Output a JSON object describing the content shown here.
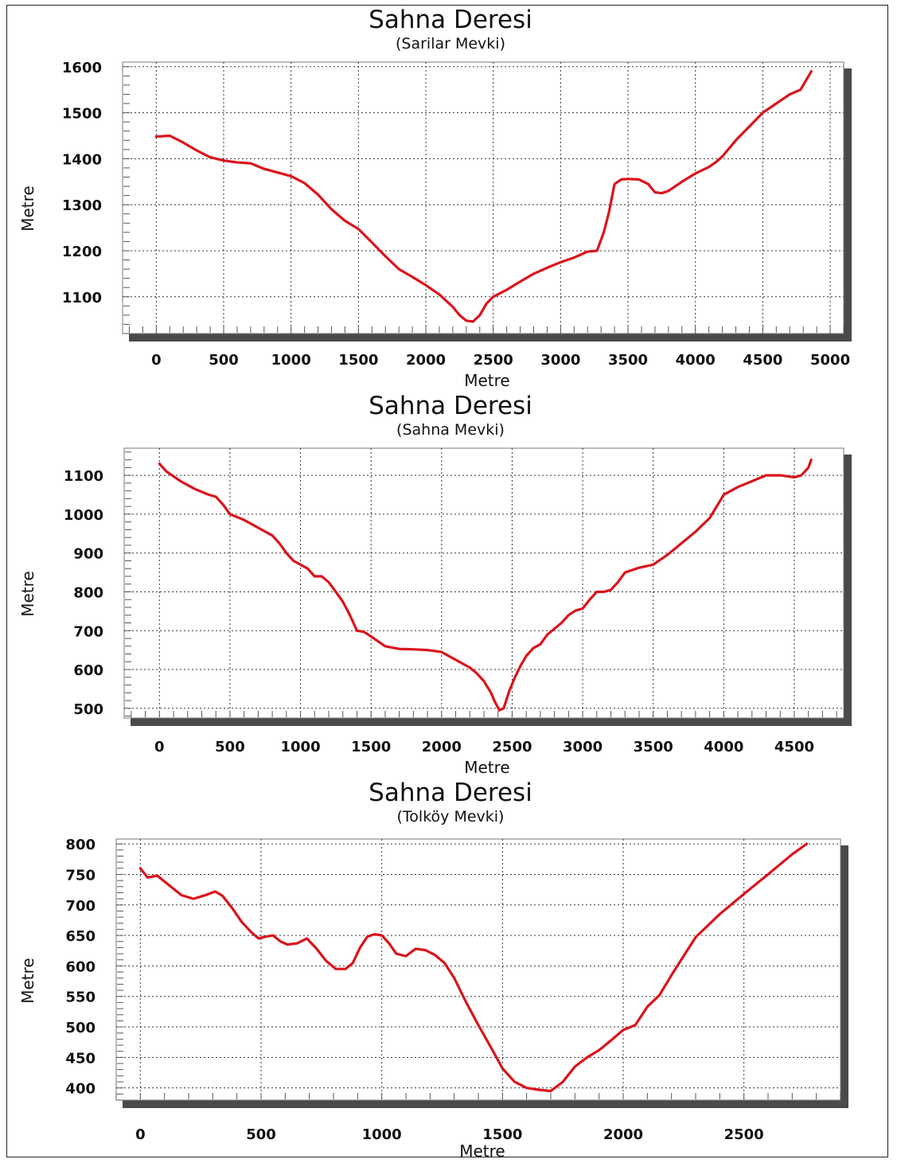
{
  "chart_data": [
    {
      "type": "line",
      "title": "Sahna Deresi",
      "subtitle": "(Sarilar Mevki)",
      "xlabel": "Metre",
      "ylabel": "Metre",
      "xlim": [
        -250,
        5100
      ],
      "ylim": [
        1020,
        1610
      ],
      "xticks": [
        0,
        500,
        1000,
        1500,
        2000,
        2500,
        3000,
        3500,
        4000,
        4500,
        5000
      ],
      "yticks": [
        1100,
        1200,
        1300,
        1400,
        1500,
        1600
      ],
      "grid": true,
      "line_color": "#d9141c",
      "series": [
        {
          "x": [
            0,
            100,
            200,
            300,
            400,
            500,
            600,
            700,
            800,
            900,
            1000,
            1100,
            1200,
            1300,
            1400,
            1500,
            1600,
            1700,
            1800,
            1900,
            2000,
            2100,
            2200,
            2250,
            2300,
            2350,
            2400,
            2450,
            2500,
            2600,
            2700,
            2800,
            2900,
            3000,
            3100,
            3200,
            3270,
            3320,
            3360,
            3400,
            3450,
            3500,
            3580,
            3650,
            3700,
            3750,
            3800,
            3900,
            4000,
            4100,
            4150,
            4200,
            4300,
            4400,
            4500,
            4600,
            4700,
            4780,
            4820,
            4860
          ],
          "y": [
            1448,
            1450,
            1435,
            1418,
            1403,
            1396,
            1392,
            1390,
            1378,
            1370,
            1362,
            1347,
            1322,
            1290,
            1265,
            1247,
            1218,
            1188,
            1160,
            1143,
            1125,
            1105,
            1078,
            1060,
            1048,
            1046,
            1060,
            1085,
            1100,
            1115,
            1133,
            1150,
            1163,
            1175,
            1185,
            1198,
            1200,
            1240,
            1285,
            1345,
            1355,
            1356,
            1355,
            1345,
            1327,
            1325,
            1330,
            1350,
            1368,
            1382,
            1392,
            1405,
            1440,
            1470,
            1500,
            1520,
            1540,
            1550,
            1570,
            1590
          ]
        }
      ]
    },
    {
      "type": "line",
      "title": "Sahna Deresi",
      "subtitle": "(Sahna Mevki)",
      "xlabel": "Metre",
      "ylabel": "Metre",
      "xlim": [
        -250,
        4850
      ],
      "ylim": [
        475,
        1170
      ],
      "xticks": [
        0,
        500,
        1000,
        1500,
        2000,
        2500,
        3000,
        3500,
        4000,
        4500
      ],
      "yticks": [
        500,
        600,
        700,
        800,
        900,
        1000,
        1100
      ],
      "grid": true,
      "line_color": "#d9141c",
      "series": [
        {
          "x": [
            0,
            50,
            150,
            250,
            350,
            400,
            450,
            500,
            600,
            700,
            800,
            850,
            900,
            950,
            1000,
            1050,
            1100,
            1150,
            1200,
            1250,
            1300,
            1350,
            1400,
            1450,
            1500,
            1600,
            1700,
            1800,
            1900,
            2000,
            2100,
            2200,
            2250,
            2300,
            2350,
            2380,
            2410,
            2440,
            2480,
            2520,
            2560,
            2600,
            2650,
            2700,
            2750,
            2800,
            2850,
            2900,
            2950,
            3000,
            3050,
            3100,
            3150,
            3200,
            3250,
            3300,
            3400,
            3500,
            3600,
            3700,
            3800,
            3900,
            3950,
            4000,
            4100,
            4200,
            4300,
            4400,
            4500,
            4550,
            4600,
            4620
          ],
          "y": [
            1130,
            1110,
            1085,
            1065,
            1050,
            1045,
            1025,
            1000,
            985,
            965,
            945,
            925,
            900,
            880,
            870,
            860,
            840,
            840,
            825,
            800,
            775,
            740,
            700,
            697,
            685,
            660,
            653,
            652,
            650,
            645,
            625,
            605,
            590,
            570,
            540,
            515,
            495,
            500,
            545,
            580,
            610,
            635,
            655,
            665,
            690,
            705,
            720,
            740,
            752,
            757,
            780,
            800,
            800,
            805,
            825,
            850,
            862,
            870,
            895,
            925,
            955,
            990,
            1020,
            1050,
            1070,
            1085,
            1100,
            1100,
            1095,
            1100,
            1120,
            1140
          ]
        }
      ]
    },
    {
      "type": "line",
      "title": "Sahna Deresi",
      "subtitle": "(Tolköy Mevki)",
      "xlabel": "Metre",
      "ylabel": "Metre",
      "xlim": [
        -100,
        2900
      ],
      "ylim": [
        380,
        808
      ],
      "xticks": [
        0,
        500,
        1000,
        1500,
        2000,
        2500
      ],
      "yticks": [
        400,
        450,
        500,
        550,
        600,
        650,
        700,
        750,
        800
      ],
      "grid": true,
      "line_color": "#d9141c",
      "series": [
        {
          "x": [
            0,
            30,
            70,
            120,
            170,
            220,
            270,
            310,
            340,
            380,
            420,
            460,
            490,
            520,
            550,
            580,
            610,
            650,
            690,
            730,
            770,
            810,
            850,
            880,
            910,
            940,
            970,
            1000,
            1030,
            1060,
            1100,
            1140,
            1180,
            1220,
            1260,
            1300,
            1350,
            1400,
            1450,
            1500,
            1550,
            1600,
            1650,
            1700,
            1750,
            1800,
            1850,
            1900,
            1950,
            2000,
            2050,
            2100,
            2150,
            2200,
            2300,
            2400,
            2500,
            2600,
            2700,
            2760
          ],
          "y": [
            760,
            745,
            748,
            732,
            716,
            710,
            716,
            722,
            715,
            695,
            672,
            655,
            645,
            648,
            650,
            640,
            635,
            637,
            645,
            628,
            608,
            595,
            595,
            605,
            630,
            648,
            652,
            650,
            637,
            620,
            616,
            628,
            626,
            618,
            605,
            580,
            540,
            503,
            468,
            432,
            410,
            400,
            397,
            395,
            410,
            435,
            450,
            462,
            478,
            495,
            503,
            533,
            552,
            585,
            647,
            685,
            718,
            750,
            783,
            800
          ]
        }
      ]
    }
  ]
}
